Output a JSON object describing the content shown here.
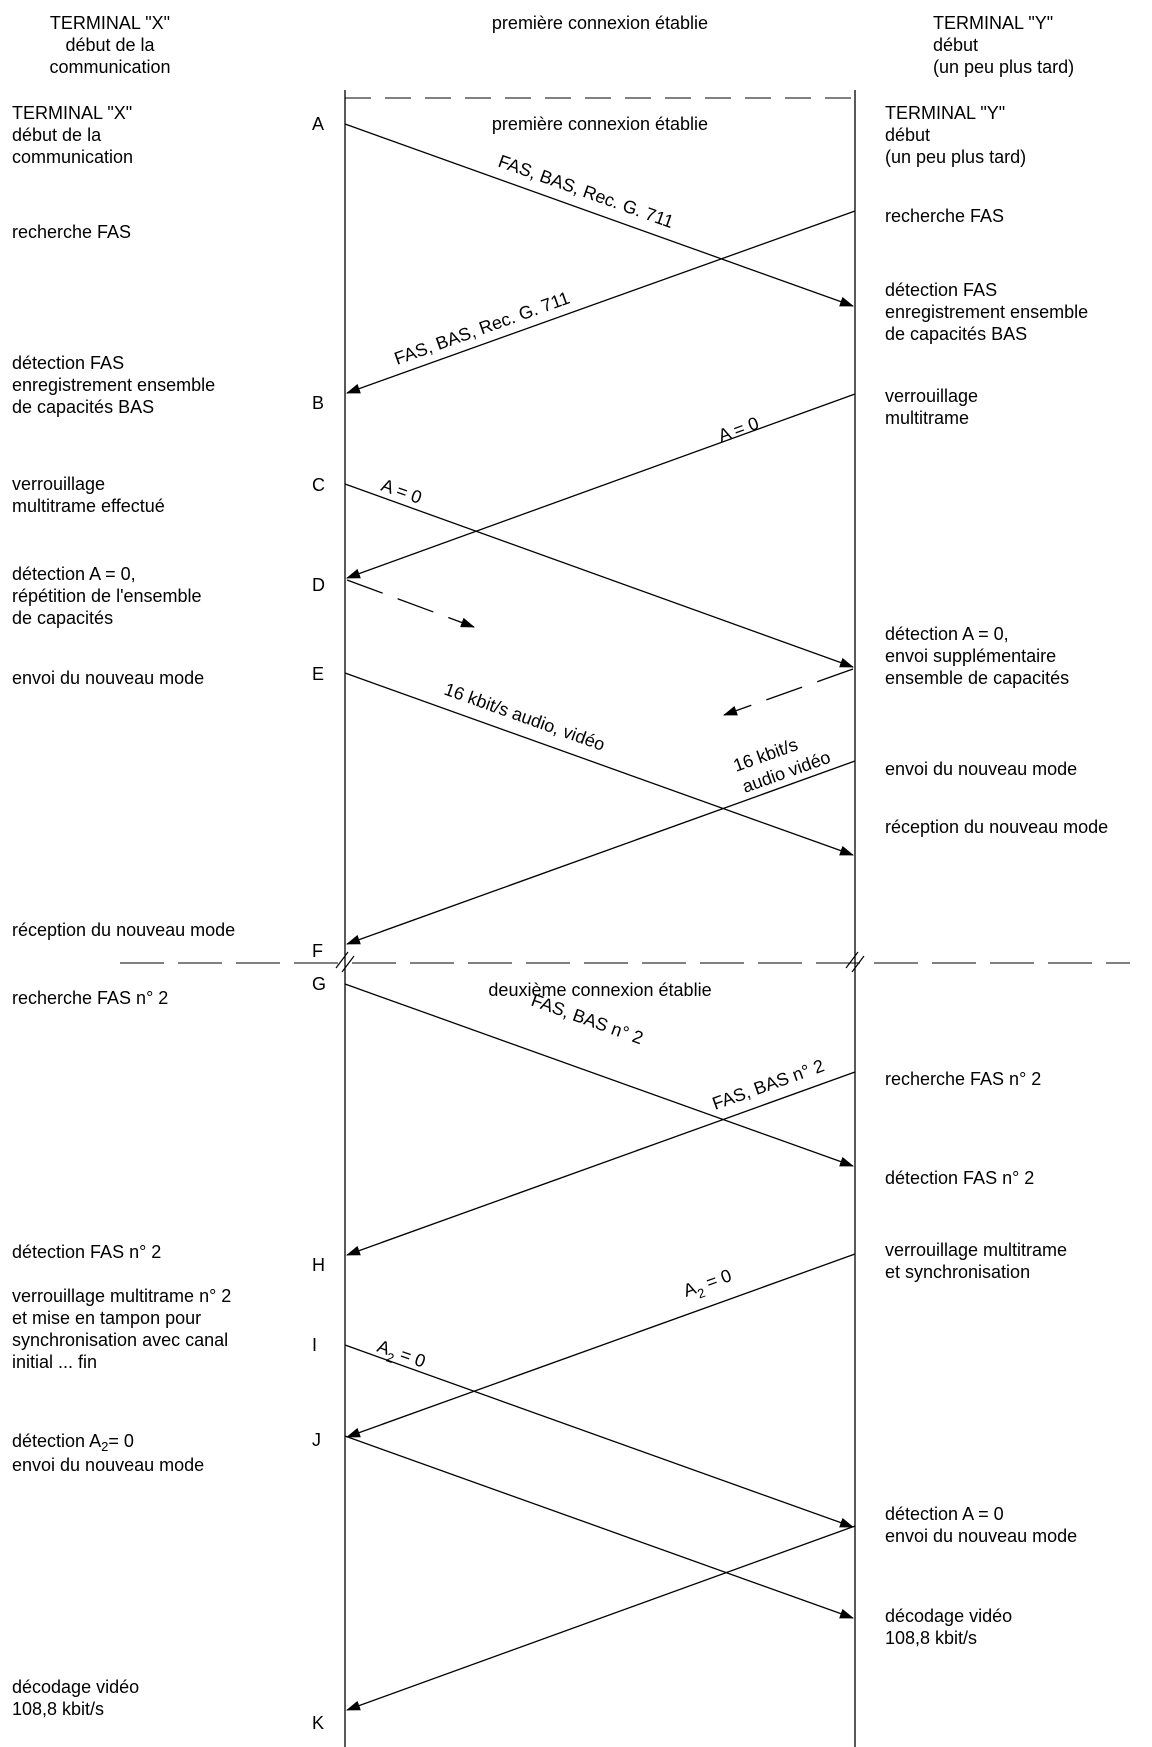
{
  "header": {
    "left": "TERMINAL \"X\"\ndébut de la\ncommunication",
    "center": "première connexion établie",
    "right": "TERMINAL \"Y\"\ndébut\n(un peu plus tard)"
  },
  "section1_title": "première connexion établie",
  "section2_title": "deuxième connexion établie",
  "left_texts": [
    "TERMINAL \"X\"\ndébut de la\ncommunication",
    "recherche FAS",
    "détection FAS\nenregistrement ensemble\nde capacités BAS",
    "verrouillage\nmultitrame effectué",
    "détection A = 0,\nrépétition de l'ensemble\nde capacités",
    "envoi du nouveau mode",
    "réception du nouveau mode",
    "recherche FAS n° 2",
    "détection FAS n° 2",
    "verrouillage multitrame n° 2\net mise en tampon pour\nsynchronisation avec canal\ninitial ... fin",
    "envoi du nouveau mode",
    "décodage vidéo\n108,8 kbit/s"
  ],
  "left_detect_a2": {
    "prefix": "détection A",
    "sub": "2",
    "suffix": "= 0"
  },
  "right_texts": [
    "TERMINAL \"Y\"\ndébut\n(un peu plus tard)",
    "recherche FAS",
    "détection FAS\nenregistrement ensemble\nde capacités BAS",
    "verrouillage\nmultitrame",
    "détection A = 0,\nenvoi supplémentaire\nensemble de capacités",
    "envoi du nouveau mode",
    "réception du nouveau mode",
    "recherche FAS n° 2",
    "détection FAS n° 2",
    "verrouillage multitrame\net synchronisation",
    "détection A = 0\nenvoi du nouveau mode",
    "décodage vidéo\n108,8 kbit/s"
  ],
  "points": [
    "A",
    "B",
    "C",
    "D",
    "E",
    "F",
    "G",
    "H",
    "I",
    "J",
    "K"
  ],
  "arrow_labels": {
    "fas_bas_g711_1": "FAS, BAS, Rec. G. 711",
    "fas_bas_g711_2": "FAS, BAS, Rec. G. 711",
    "a_eq_0_y": "A = 0",
    "a_eq_0_x": "A = 0",
    "audio_video_x": "16 kbit/s audio, vidéo",
    "audio_video_y_1": "16 kbit/s",
    "audio_video_y_2": "audio vidéo",
    "fas_bas_2_x": "FAS, BAS n° 2",
    "fas_bas_2_y": "FAS, BAS n° 2",
    "a2_y": {
      "prefix": "A",
      "sub": "2",
      "suffix": " = 0"
    },
    "a2_x": {
      "prefix": "A",
      "sub": "2",
      "suffix": " = 0"
    }
  },
  "colors": {
    "line": "#000000",
    "background": "#ffffff"
  }
}
